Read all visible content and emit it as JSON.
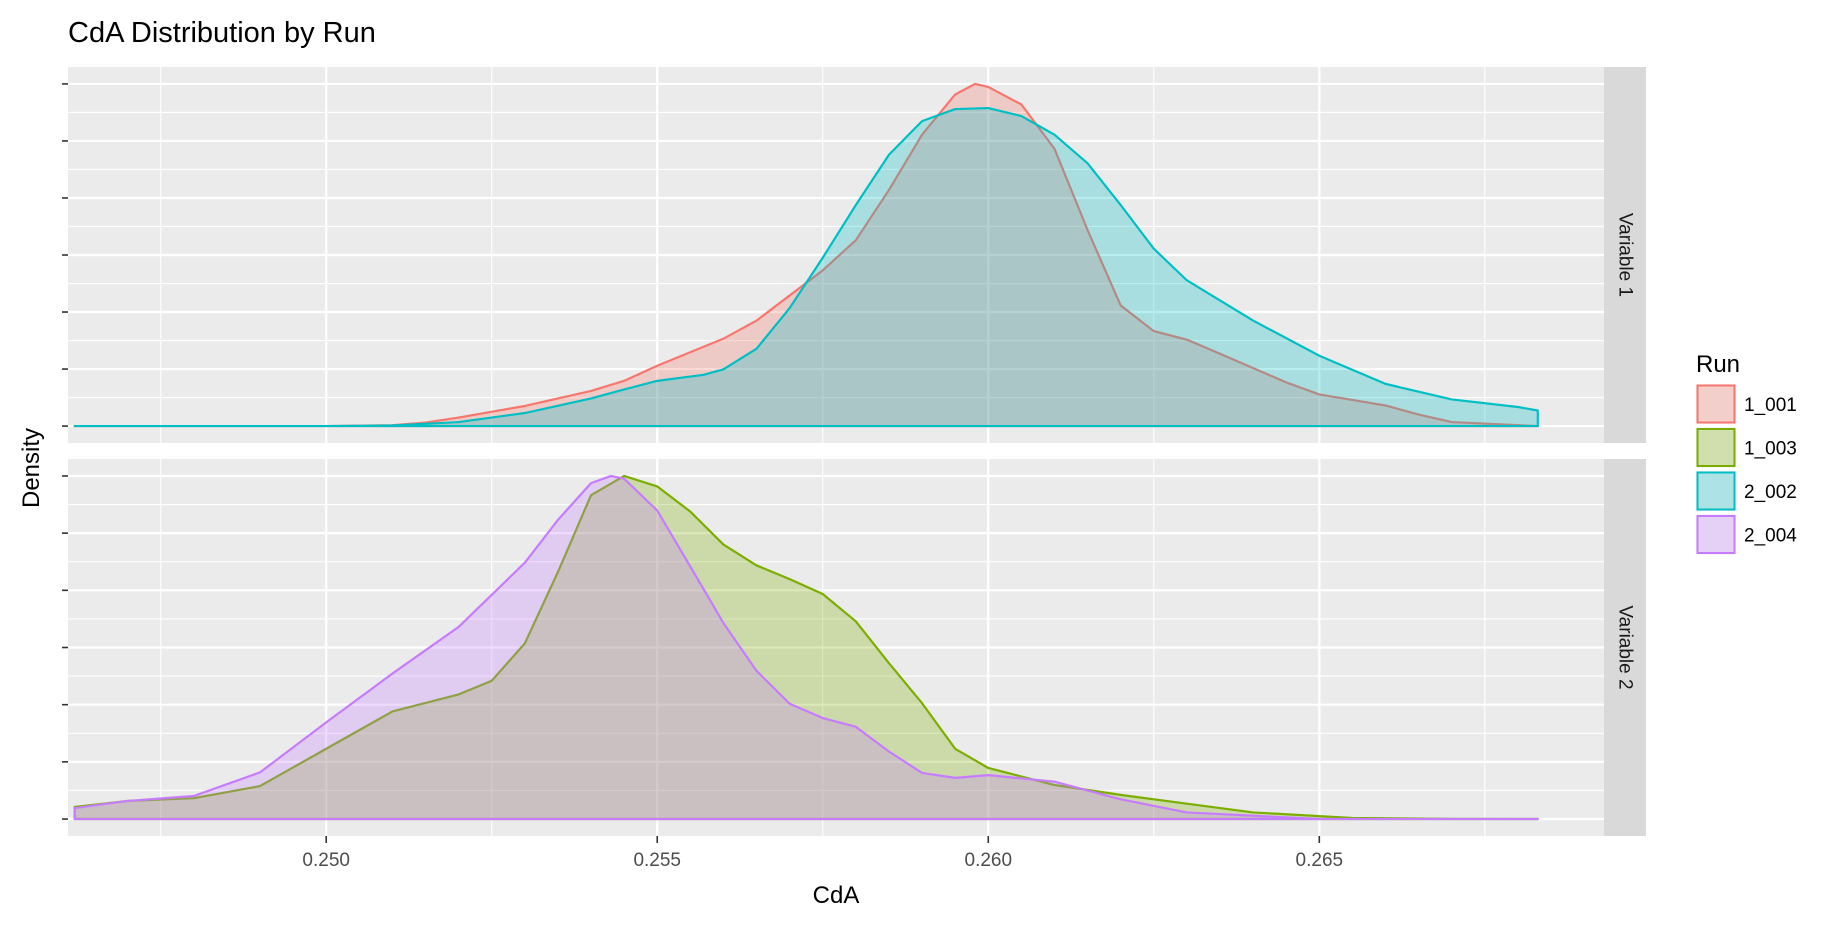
{
  "chart_data": {
    "type": "area",
    "title": "CdA Distribution by Run",
    "xlabel": "CdA",
    "ylabel": "Density",
    "xlim": [
      0.2461,
      0.2693
    ],
    "x_ticks": [
      "0.250",
      "0.255",
      "0.260",
      "0.265"
    ],
    "x_tick_values": [
      0.25,
      0.255,
      0.26,
      0.265
    ],
    "y_ticks_shown": false,
    "grid": true,
    "legend": {
      "title": "Run",
      "position": "right",
      "entries": [
        {
          "name": "1_001",
          "color": "#F8766D"
        },
        {
          "name": "1_003",
          "color": "#7CAE00"
        },
        {
          "name": "2_002",
          "color": "#00BFC4"
        },
        {
          "name": "2_004",
          "color": "#C77CFF"
        }
      ]
    },
    "panels": [
      {
        "label": "Variable 1",
        "series": [
          {
            "name": "1_001",
            "color": "#F8766D",
            "x": [
              0.2462,
              0.25,
              0.251,
              0.2515,
              0.252,
              0.253,
              0.254,
              0.2545,
              0.255,
              0.256,
              0.2565,
              0.2575,
              0.258,
              0.2585,
              0.259,
              0.2595,
              0.2598,
              0.26,
              0.2605,
              0.261,
              0.2615,
              0.262,
              0.2625,
              0.263,
              0.2635,
              0.2645,
              0.265,
              0.2655,
              0.266,
              0.2665,
              0.267,
              0.2683
            ],
            "y": [
              0,
              0.0,
              0.0018,
              0.007,
              0.017,
              0.04,
              0.07,
              0.09,
              0.12,
              0.174,
              0.21,
              0.31,
              0.37,
              0.47,
              0.58,
              0.66,
              0.681,
              0.675,
              0.64,
              0.552,
              0.39,
              0.24,
              0.189,
              0.172,
              0.144,
              0.087,
              0.063,
              0.052,
              0.041,
              0.023,
              0.008,
              0
            ]
          },
          {
            "name": "2_002",
            "color": "#00BFC4",
            "x": [
              0.2462,
              0.25,
              0.251,
              0.252,
              0.253,
              0.254,
              0.2545,
              0.255,
              0.2557,
              0.256,
              0.2565,
              0.257,
              0.2575,
              0.258,
              0.2585,
              0.259,
              0.2595,
              0.26,
              0.2605,
              0.261,
              0.2615,
              0.262,
              0.2625,
              0.263,
              0.264,
              0.265,
              0.266,
              0.267,
              0.268,
              0.2683
            ],
            "y": [
              0,
              0.0,
              0.0012,
              0.008,
              0.026,
              0.055,
              0.073,
              0.09,
              0.102,
              0.113,
              0.154,
              0.235,
              0.335,
              0.44,
              0.54,
              0.607,
              0.631,
              0.633,
              0.617,
              0.58,
              0.523,
              0.44,
              0.353,
              0.29,
              0.21,
              0.14,
              0.084,
              0.053,
              0.038,
              0.031
            ]
          }
        ]
      },
      {
        "label": "Variable 2",
        "series": [
          {
            "name": "1_003",
            "color": "#7CAE00",
            "x": [
              0.2462,
              0.247,
              0.248,
              0.249,
              0.25,
              0.251,
              0.252,
              0.2525,
              0.253,
              0.2535,
              0.254,
              0.2545,
              0.255,
              0.2555,
              0.256,
              0.2565,
              0.257,
              0.2575,
              0.258,
              0.2585,
              0.259,
              0.2595,
              0.26,
              0.261,
              0.262,
              0.263,
              0.264,
              0.2655,
              0.267,
              0.2683
            ],
            "y": [
              0.022,
              0.033,
              0.038,
              0.06,
              0.128,
              0.196,
              0.227,
              0.252,
              0.32,
              0.45,
              0.59,
              0.625,
              0.606,
              0.56,
              0.5,
              0.462,
              0.437,
              0.41,
              0.36,
              0.284,
              0.211,
              0.128,
              0.093,
              0.062,
              0.044,
              0.028,
              0.012,
              0.002,
              0.0003,
              0
            ]
          },
          {
            "name": "2_004",
            "color": "#C77CFF",
            "x": [
              0.2462,
              0.247,
              0.248,
              0.249,
              0.25,
              0.251,
              0.252,
              0.253,
              0.2535,
              0.254,
              0.2543,
              0.2545,
              0.255,
              0.2555,
              0.256,
              0.2565,
              0.257,
              0.2575,
              0.258,
              0.2585,
              0.259,
              0.2595,
              0.26,
              0.261,
              0.262,
              0.263,
              0.265,
              0.2683
            ],
            "y": [
              0.02,
              0.033,
              0.042,
              0.085,
              0.176,
              0.265,
              0.35,
              0.467,
              0.545,
              0.612,
              0.625,
              0.62,
              0.562,
              0.46,
              0.357,
              0.27,
              0.21,
              0.184,
              0.168,
              0.123,
              0.084,
              0.075,
              0.08,
              0.068,
              0.036,
              0.012,
              0.0,
              0
            ]
          }
        ]
      }
    ]
  }
}
